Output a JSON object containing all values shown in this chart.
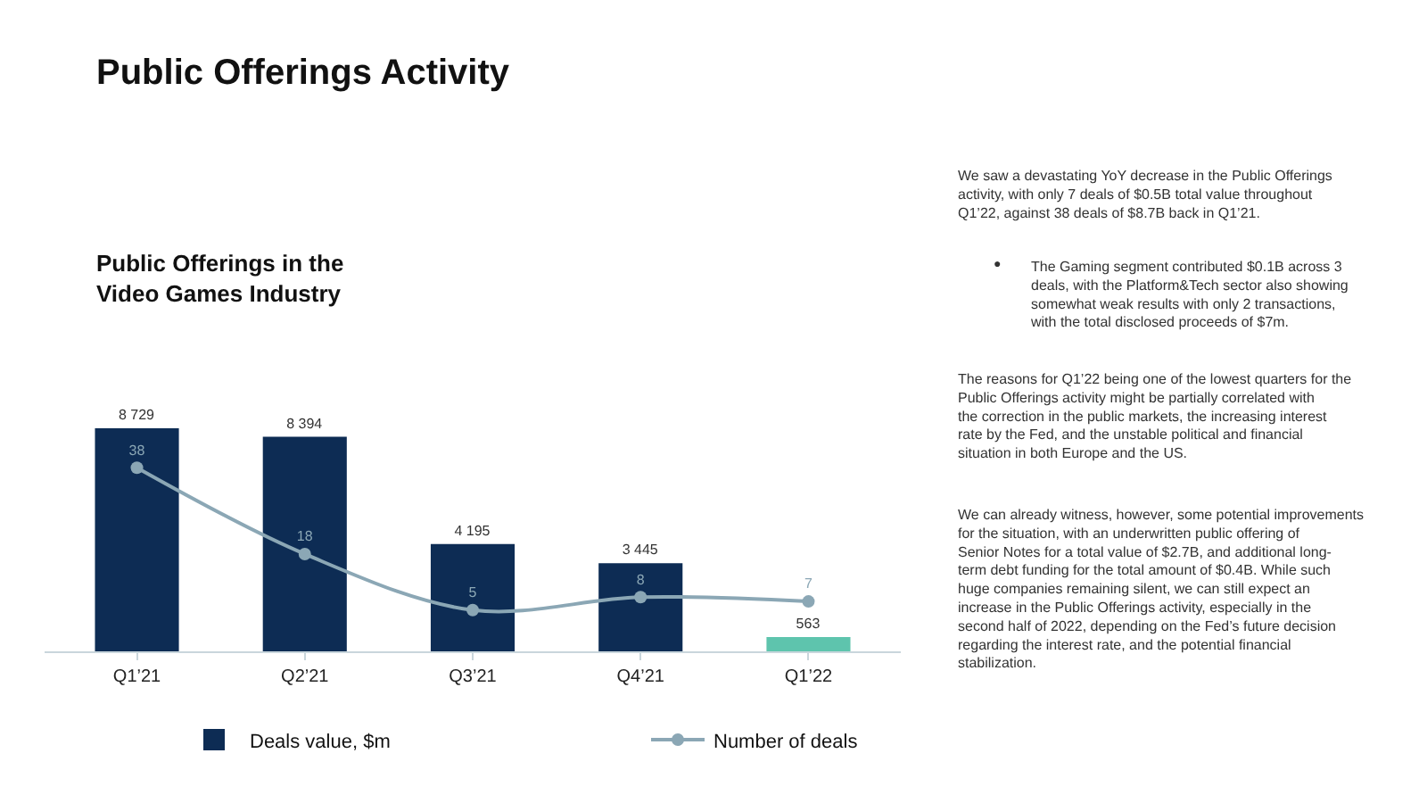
{
  "chart_data": {
    "type": "bar",
    "title": "Public Offerings Activity",
    "subtitle": "Public Offerings in the Video Games Industry",
    "categories": [
      "Q1’21",
      "Q2’21",
      "Q3’21",
      "Q4’21",
      "Q1’22"
    ],
    "series": [
      {
        "name": "Deals value, $m",
        "colors": [
          "#0d2c54",
          "#0d2c54",
          "#0d2c54",
          "#0d2c54",
          "#5ec4ad"
        ],
        "values": [
          8729,
          8394,
          4195,
          3445,
          563
        ],
        "value_labels": [
          "8 729",
          "8 394",
          "4 195",
          "3 445",
          "563"
        ]
      },
      {
        "name": "Number of deals",
        "type": "line",
        "axis": "y2",
        "color": "#8ba7b5",
        "values": [
          38,
          18,
          5,
          8,
          7
        ],
        "marker": "circle"
      }
    ],
    "tick_labels": "x",
    "data_labels": true,
    "legend": "bottom",
    "annotations": [
      "We saw a devastating YoY decrease in the Public Offerings activity, with only 7 deals of $0.5B total value throughout Q1’22, against 38 deals of $8.7B back in Q1’21.",
      "● The Gaming segment contributed $0.1B across 3 deals, with the Platform&Tech sector also showing somewhat weak results with only 2 transactions, with the total disclosed proceeds of $7m.",
      "The reasons for Q1’22 being one of the lowest quarters for the Public Offerings activity might be partially correlated with the correction in the public markets, the increasing interest rate by the Fed, and the unstable political and financial situation in both Europe and the US.",
      "We can already witness, however, some potential improvements for the situation, with an underwritten public offering of Senior Notes for a total value of $2.7B, and additional long-term debt funding for the total amount of $0.4B. While such huge companies remaining silent, we can still expect an increase in the Public Offerings activity, especially in the second half of 2022, depending on the Fed’s future decision regarding the interest rate, and the potential financial stabilization."
    ]
  }
}
